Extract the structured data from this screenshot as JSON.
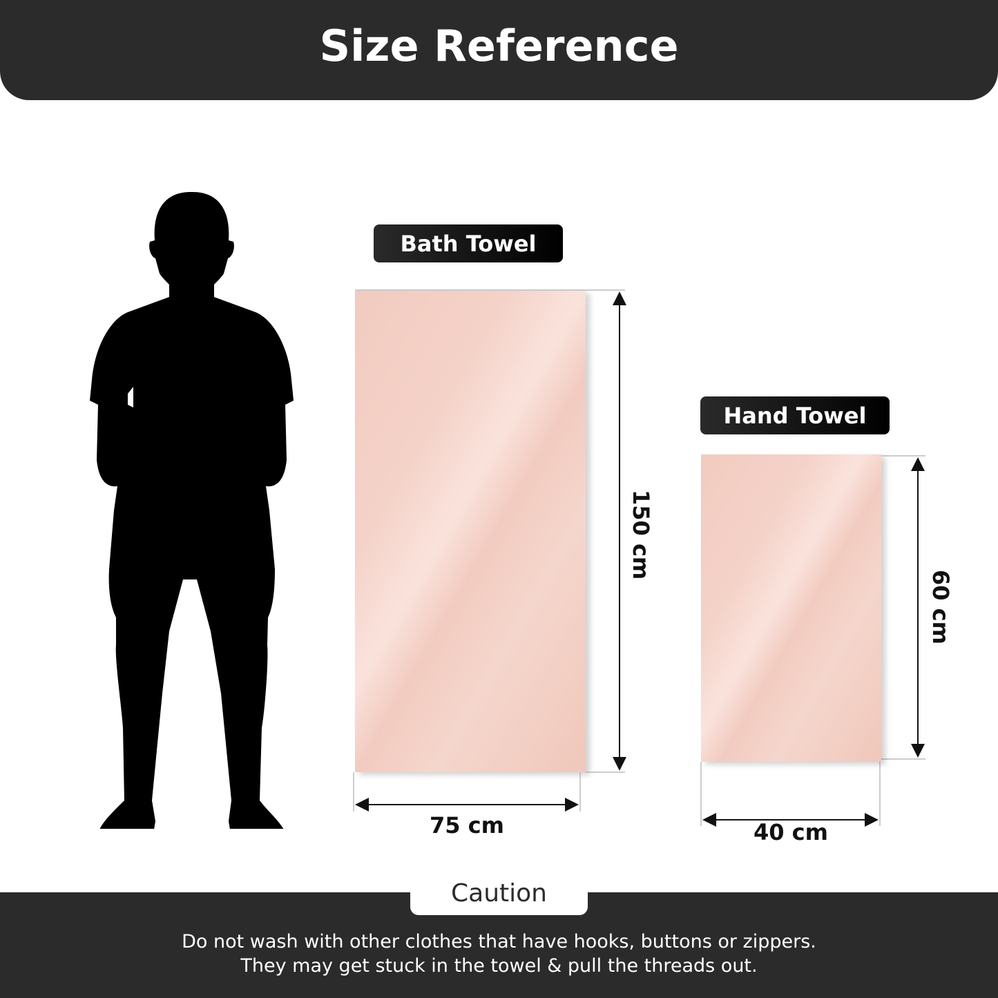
{
  "header": {
    "title": "Size Reference"
  },
  "bath_towel": {
    "label": "Bath Towel",
    "height": "150 cm",
    "width": "75 cm",
    "color": "#f2cbc0"
  },
  "hand_towel": {
    "label": "Hand Towel",
    "height": "60 cm",
    "width": "40 cm",
    "color": "#f2cbc0"
  },
  "figure": {
    "icon": "person-silhouette-icon"
  },
  "footer": {
    "caution_label": "Caution",
    "lines": [
      "Do not wash with other clothes that have hooks, buttons or zippers.",
      "They may get stuck in the towel & pull the threads out."
    ]
  }
}
